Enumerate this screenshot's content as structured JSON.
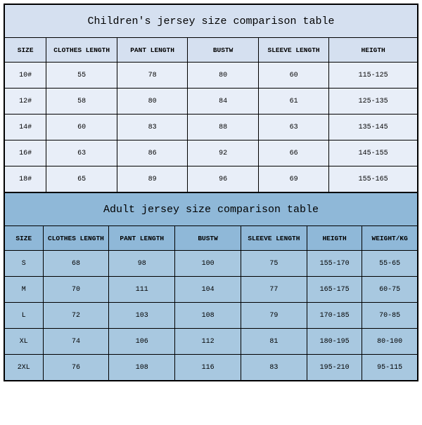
{
  "children_table": {
    "title": "Children's jersey size comparison table",
    "title_bg": "#d5e0f0",
    "header_bg": "#d5e0f0",
    "row_bg": "#e8eef8",
    "border_color": "#000000",
    "font_family": "Courier New",
    "title_fontsize": 15,
    "header_fontsize": 9.5,
    "data_fontsize": 10,
    "columns": [
      "SIZE",
      "CLOTHES LENGTH",
      "PANT LENGTH",
      "BUSTW",
      "SLEEVE LENGTH",
      "HEIGTH"
    ],
    "rows": [
      [
        "10#",
        "55",
        "78",
        "80",
        "60",
        "115-125"
      ],
      [
        "12#",
        "58",
        "80",
        "84",
        "61",
        "125-135"
      ],
      [
        "14#",
        "60",
        "83",
        "88",
        "63",
        "135-145"
      ],
      [
        "16#",
        "63",
        "86",
        "92",
        "66",
        "145-155"
      ],
      [
        "18#",
        "65",
        "89",
        "96",
        "69",
        "155-165"
      ]
    ]
  },
  "adult_table": {
    "title": "Adult jersey size comparison table",
    "title_bg": "#8fb8d8",
    "header_bg": "#8fb8d8",
    "row_bg": "#a8c8e0",
    "border_color": "#000000",
    "font_family": "Courier New",
    "title_fontsize": 15,
    "header_fontsize": 9.5,
    "data_fontsize": 10,
    "columns": [
      "SIZE",
      "CLOTHES LENGTH",
      "PANT LENGTH",
      "BUSTW",
      "SLEEVE LENGTH",
      "HEIGTH",
      "WEIGHT/KG"
    ],
    "rows": [
      [
        "S",
        "68",
        "98",
        "100",
        "75",
        "155-170",
        "55-65"
      ],
      [
        "M",
        "70",
        "111",
        "104",
        "77",
        "165-175",
        "60-75"
      ],
      [
        "L",
        "72",
        "103",
        "108",
        "79",
        "170-185",
        "70-85"
      ],
      [
        "XL",
        "74",
        "106",
        "112",
        "81",
        "180-195",
        "80-100"
      ],
      [
        "2XL",
        "76",
        "108",
        "116",
        "83",
        "195-210",
        "95-115"
      ]
    ]
  }
}
